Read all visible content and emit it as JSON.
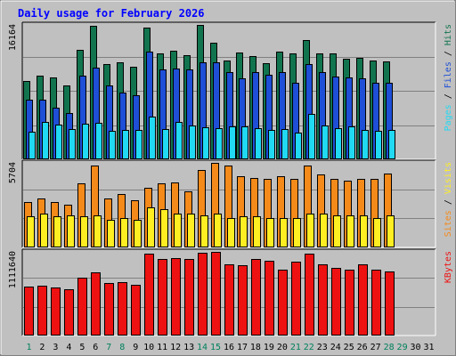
{
  "chart_data": {
    "type": "bar",
    "title": "Daily usage for February 2026",
    "x_ticks": [
      "1",
      "2",
      "3",
      "4",
      "5",
      "6",
      "7",
      "8",
      "9",
      "10",
      "11",
      "12",
      "13",
      "14",
      "15",
      "16",
      "17",
      "18",
      "19",
      "20",
      "21",
      "22",
      "23",
      "24",
      "25",
      "26",
      "27",
      "28",
      "29",
      "30",
      "31"
    ],
    "weekend_days": [
      1,
      7,
      8,
      14,
      15,
      21,
      22,
      28,
      29
    ],
    "days_with_data": 28,
    "panels": [
      {
        "id": "hits_files_pages",
        "y_max_label": "16164",
        "legend": [
          "Pages",
          "Files",
          "Hits"
        ],
        "ylim": [
          0,
          16164
        ],
        "series": [
          {
            "name": "Hits",
            "color": "#11744f",
            "values": [
              9200,
              9900,
              9700,
              8700,
              13000,
              15800,
              11300,
              11500,
              11000,
              15600,
              12500,
              12900,
              12300,
              15900,
              13800,
              11700,
              12700,
              12200,
              11400,
              12800,
              12500,
              14100,
              12500,
              12500,
              11900,
              12000,
              11700,
              11600
            ]
          },
          {
            "name": "Files",
            "color": "#1e4fd6",
            "values": [
              7000,
              7000,
              6100,
              5400,
              9900,
              10800,
              8700,
              7900,
              7500,
              12800,
              10600,
              10700,
              10600,
              11500,
              11500,
              10300,
              9600,
              10300,
              10000,
              10300,
              9000,
              11300,
              10300,
              9800,
              9700,
              9600,
              9000,
              9000
            ]
          },
          {
            "name": "Pages",
            "color": "#21d9f2",
            "values": [
              3200,
              4400,
              4000,
              3500,
              4200,
              4300,
              3300,
              3400,
              3400,
              5000,
              3500,
              4400,
              3900,
              3700,
              3600,
              3800,
              3800,
              3600,
              3400,
              3500,
              3100,
              5300,
              3900,
              3600,
              3800,
              3400,
              3300,
              3400
            ]
          }
        ]
      },
      {
        "id": "sites_visits",
        "y_max_label": "5704",
        "legend": [
          "Sites",
          "Visits"
        ],
        "ylim": [
          0,
          5704
        ],
        "series": [
          {
            "name": "Visits",
            "color": "#f48a1a",
            "values": [
              3000,
              3200,
              3000,
              2800,
              4200,
              5400,
              3200,
              3500,
              3100,
              3900,
              4200,
              4300,
              3700,
              5100,
              5600,
              5400,
              4700,
              4600,
              4500,
              4700,
              4500,
              5400,
              4800,
              4500,
              4400,
              4500,
              4500,
              4900
            ]
          },
          {
            "name": "Sites",
            "color": "#ffee22",
            "values": [
              2000,
              2200,
              2000,
              2100,
              2000,
              2100,
              1800,
              1900,
              1800,
              2600,
              2500,
              2200,
              2200,
              2100,
              2200,
              1900,
              2000,
              2000,
              1900,
              1900,
              1900,
              2200,
              2200,
              2100,
              2100,
              2100,
              1900,
              2100
            ]
          }
        ]
      },
      {
        "id": "kbytes",
        "y_max_label": "1111640",
        "legend": [
          "KBytes"
        ],
        "ylim": [
          0,
          1111640
        ],
        "series": [
          {
            "name": "KBytes",
            "color": "#ee1111",
            "values": [
              630000,
              640000,
              620000,
              600000,
              750000,
              820000,
              680000,
              690000,
              650000,
              1060000,
              1000000,
              1010000,
              1000000,
              1080000,
              1090000,
              930000,
              910000,
              1000000,
              970000,
              850000,
              960000,
              1060000,
              930000,
              880000,
              850000,
              930000,
              850000,
              830000
            ]
          }
        ]
      }
    ]
  }
}
